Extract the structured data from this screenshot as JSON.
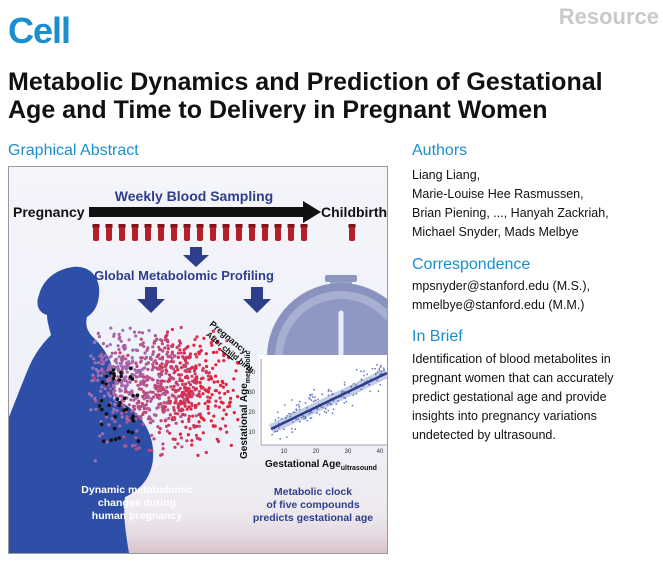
{
  "header": {
    "journal": "Cell",
    "article_type": "Resource"
  },
  "title_lines": [
    "Metabolic Dynamics and Prediction of Gestational",
    "Age and Time to Delivery in Pregnant Women"
  ],
  "graphical_abstract": {
    "heading": "Graphical Abstract",
    "weekly_sampling": "Weekly Blood Sampling",
    "pregnancy": "Pregnancy",
    "childbirth": "Childbirth",
    "profiling": "Global Metabolomic Profiling",
    "pca_label_pregnancy": "Pregnancy",
    "pca_label_after": "After child birth",
    "left_caption": [
      "Dynamic metabolomic",
      "changes during",
      "human pregnancy"
    ],
    "right_caption": [
      "Metabolic clock",
      "of five compounds",
      "predicts gestational age"
    ],
    "plot": {
      "ylabel": "Gestational Age",
      "ylabel_sub": "metabolic",
      "xlabel": "Gestational Age",
      "xlabel_sub": "ultrasound",
      "yticks": [
        "10",
        "20",
        "30",
        "40"
      ],
      "xticks": [
        "10",
        "20",
        "30",
        "40"
      ]
    },
    "colors": {
      "navy": "#2d3e8c",
      "figure_blue": "#2e4fa8",
      "tube_red": "#b3202a",
      "clock_gray": "#9aa3c9"
    },
    "icons": [
      "blood-tube-icon",
      "stopwatch-icon",
      "pregnant-woman-silhouette"
    ]
  },
  "authors": {
    "heading": "Authors",
    "lines": [
      "Liang Liang,",
      "Marie-Louise Hee Rasmussen,",
      "Brian Piening, ..., Hanyah Zackriah,",
      "Michael Snyder, Mads Melbye"
    ]
  },
  "correspondence": {
    "heading": "Correspondence",
    "lines": [
      "mpsnyder@stanford.edu (M.S.),",
      "mmelbye@stanford.edu (M.M.)"
    ]
  },
  "in_brief": {
    "heading": "In Brief",
    "lines": [
      "Identification of blood metabolites in",
      "pregnant women that can accurately",
      "predict gestational age and provide",
      "insights into pregnancy variations",
      "undetected by ultrasound."
    ]
  }
}
